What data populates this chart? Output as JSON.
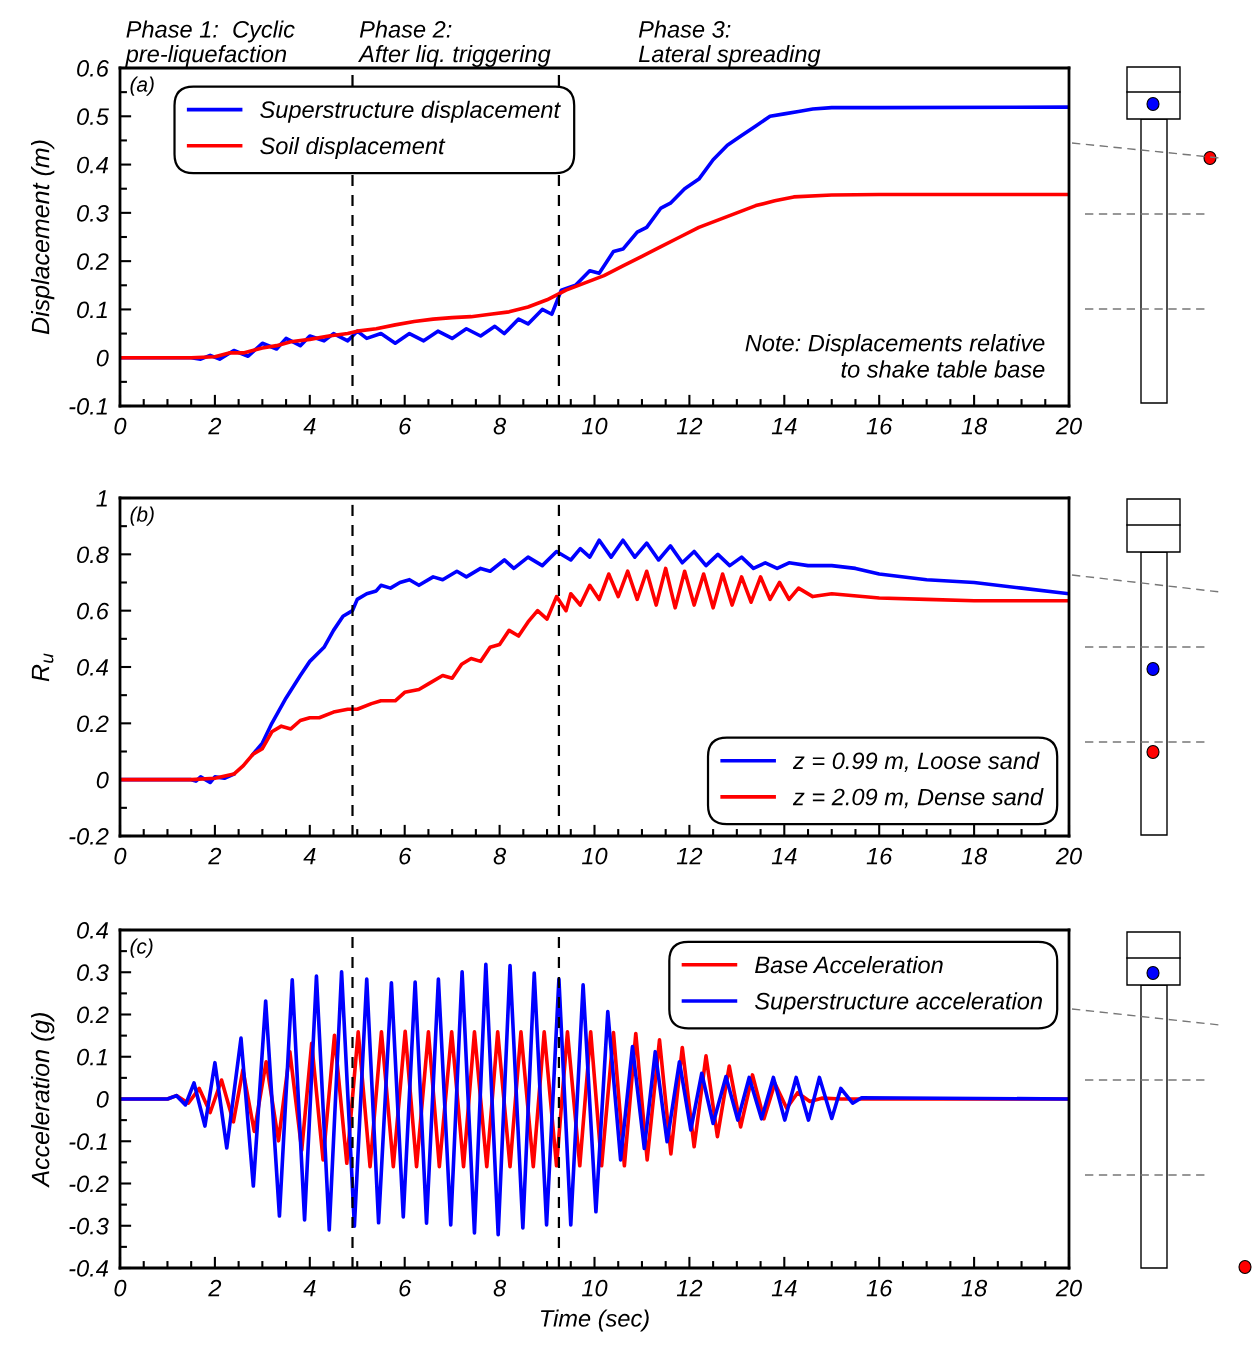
{
  "chart_data": [
    {
      "type": "line",
      "ylabel": "Displacement (m)",
      "xlim": [
        0,
        20
      ],
      "xticks": [
        0,
        2,
        4,
        6,
        8,
        10,
        12,
        14,
        16,
        18,
        20
      ],
      "ylim": [
        -0.1,
        0.6
      ],
      "yticks": [
        -0.1,
        0,
        0.1,
        0.2,
        0.3,
        0.4,
        0.5,
        0.6
      ],
      "legend": "top left",
      "grid": false,
      "annotations": [
        "(a)",
        "Note: Displacements relative\nto shake table base",
        "Phase 1:  Cyclic\npre-liquefaction",
        "Phase 2:\nAfter liq. triggering",
        "Phase 3:\nLateral spreading"
      ],
      "ref_lines": [
        {
          "axis": "x",
          "value": 4.9,
          "color": "#000000",
          "line_style": "dashed"
        },
        {
          "axis": "x",
          "value": 9.25,
          "color": "#000000",
          "line_style": "dashed"
        }
      ],
      "series": [
        {
          "name": "Superstructure displacement",
          "color": "#0000ff",
          "x": [
            0,
            1.5,
            1.7,
            1.9,
            2.1,
            2.4,
            2.7,
            3.0,
            3.3,
            3.5,
            3.8,
            4.0,
            4.3,
            4.5,
            4.8,
            5.0,
            5.2,
            5.5,
            5.8,
            6.1,
            6.4,
            6.7,
            7.0,
            7.3,
            7.6,
            7.9,
            8.1,
            8.4,
            8.6,
            8.9,
            9.1,
            9.3,
            9.6,
            9.9,
            10.1,
            10.4,
            10.6,
            10.9,
            11.1,
            11.4,
            11.6,
            11.9,
            12.2,
            12.5,
            12.8,
            13.1,
            13.4,
            13.7,
            14.0,
            14.3,
            14.6,
            15,
            16,
            20
          ],
          "values": [
            0,
            0,
            -0.003,
            0.005,
            -0.003,
            0.015,
            0.003,
            0.03,
            0.018,
            0.04,
            0.025,
            0.045,
            0.035,
            0.05,
            0.035,
            0.055,
            0.04,
            0.05,
            0.03,
            0.05,
            0.035,
            0.055,
            0.04,
            0.06,
            0.045,
            0.065,
            0.05,
            0.08,
            0.07,
            0.1,
            0.09,
            0.14,
            0.15,
            0.18,
            0.175,
            0.22,
            0.225,
            0.26,
            0.27,
            0.31,
            0.32,
            0.35,
            0.37,
            0.41,
            0.44,
            0.46,
            0.48,
            0.5,
            0.505,
            0.51,
            0.515,
            0.518,
            0.518,
            0.519
          ]
        },
        {
          "name": "Soil displacement",
          "color": "#ff0000",
          "x": [
            0,
            1.5,
            2.0,
            2.3,
            2.6,
            3.0,
            3.3,
            3.6,
            4.0,
            4.4,
            4.8,
            5.0,
            5.4,
            5.8,
            6.2,
            6.6,
            7.0,
            7.4,
            7.8,
            8.2,
            8.6,
            9.0,
            9.4,
            9.8,
            10.2,
            10.6,
            11.0,
            11.4,
            11.8,
            12.2,
            12.6,
            13.0,
            13.4,
            13.8,
            14.2,
            15,
            16,
            20
          ],
          "values": [
            0,
            0,
            0.002,
            0.01,
            0.01,
            0.02,
            0.025,
            0.033,
            0.038,
            0.045,
            0.05,
            0.055,
            0.06,
            0.068,
            0.075,
            0.08,
            0.083,
            0.085,
            0.09,
            0.095,
            0.105,
            0.12,
            0.14,
            0.155,
            0.17,
            0.19,
            0.21,
            0.23,
            0.25,
            0.27,
            0.285,
            0.3,
            0.315,
            0.325,
            0.333,
            0.337,
            0.338,
            0.338
          ]
        }
      ]
    },
    {
      "type": "line",
      "ylabel": "R$_{u}$",
      "xlim": [
        0,
        20
      ],
      "xticks": [
        0,
        2,
        4,
        6,
        8,
        10,
        12,
        14,
        16,
        18,
        20
      ],
      "ylim": [
        -0.2,
        1
      ],
      "yticks": [
        -0.2,
        0,
        0.2,
        0.4,
        0.6,
        0.8,
        1
      ],
      "legend": "bottom right",
      "grid": false,
      "annotations": [
        "(b)"
      ],
      "ref_lines": [
        {
          "axis": "x",
          "value": 4.9,
          "color": "#000000",
          "line_style": "dashed"
        },
        {
          "axis": "x",
          "value": 9.25,
          "color": "#000000",
          "line_style": "dashed"
        }
      ],
      "series": [
        {
          "name": "z = 0.99 m, Loose sand",
          "color": "#0000ff",
          "x": [
            0,
            1.5,
            1.6,
            1.7,
            1.9,
            2.0,
            2.2,
            2.4,
            2.6,
            2.8,
            3.0,
            3.2,
            3.5,
            3.8,
            4.0,
            4.3,
            4.5,
            4.7,
            4.9,
            5.0,
            5.2,
            5.4,
            5.5,
            5.7,
            5.9,
            6.1,
            6.3,
            6.6,
            6.8,
            7.1,
            7.3,
            7.6,
            7.8,
            8.1,
            8.3,
            8.6,
            8.9,
            9.2,
            9.5,
            9.7,
            9.9,
            10.1,
            10.35,
            10.6,
            10.85,
            11.1,
            11.35,
            11.6,
            11.85,
            12.1,
            12.35,
            12.6,
            12.85,
            13.1,
            13.35,
            13.6,
            13.85,
            14.1,
            14.5,
            15,
            15.5,
            16,
            17,
            18,
            19,
            20
          ],
          "values": [
            0,
            0,
            -0.005,
            0.01,
            -0.01,
            0.01,
            0.005,
            0.02,
            null,
            0.09,
            0.13,
            0.2,
            0.29,
            0.37,
            0.42,
            0.47,
            0.53,
            0.58,
            0.6,
            0.64,
            0.66,
            0.67,
            0.69,
            0.68,
            0.7,
            0.71,
            0.69,
            0.72,
            0.71,
            0.74,
            0.72,
            0.75,
            0.74,
            0.78,
            0.75,
            0.79,
            0.76,
            0.81,
            0.78,
            0.82,
            0.79,
            0.85,
            0.79,
            0.85,
            0.79,
            0.84,
            0.78,
            0.83,
            0.77,
            0.81,
            0.76,
            0.8,
            0.76,
            0.79,
            0.75,
            0.77,
            0.75,
            0.77,
            0.76,
            0.76,
            0.75,
            0.73,
            0.71,
            0.7,
            0.68,
            0.66
          ]
        },
        {
          "name": "z = 2.09 m, Dense sand",
          "color": "#ff0000",
          "x": [
            0,
            1.5,
            2.0,
            2.4,
            2.6,
            2.8,
            3.0,
            3.2,
            3.4,
            3.6,
            3.8,
            4.0,
            4.2,
            4.5,
            4.8,
            5.0,
            5.3,
            5.5,
            5.8,
            6.0,
            6.3,
            6.5,
            6.8,
            7.0,
            7.2,
            7.4,
            7.6,
            7.8,
            8.0,
            8.2,
            8.4,
            8.6,
            8.8,
            9.0,
            9.2,
            9.4,
            9.5,
            9.7,
            9.9,
            10.1,
            10.3,
            10.5,
            10.7,
            10.9,
            11.1,
            11.3,
            11.5,
            11.7,
            11.9,
            12.1,
            12.3,
            12.5,
            12.7,
            12.9,
            13.1,
            13.3,
            13.5,
            13.7,
            13.9,
            14.1,
            14.3,
            14.6,
            15,
            16,
            17,
            18,
            20
          ],
          "values": [
            0,
            0,
            0.005,
            0.02,
            0.05,
            0.09,
            0.11,
            0.17,
            0.19,
            0.18,
            0.21,
            0.22,
            0.22,
            0.24,
            0.25,
            0.25,
            0.27,
            0.28,
            0.28,
            0.31,
            0.32,
            0.34,
            0.37,
            0.36,
            0.41,
            0.43,
            0.42,
            0.47,
            0.48,
            0.53,
            0.51,
            0.56,
            0.6,
            0.57,
            0.65,
            0.6,
            0.66,
            0.62,
            0.69,
            0.64,
            0.73,
            0.65,
            0.74,
            0.64,
            0.74,
            0.62,
            0.75,
            0.61,
            0.74,
            0.62,
            0.73,
            0.61,
            0.73,
            0.62,
            0.72,
            0.63,
            0.72,
            0.64,
            0.7,
            0.64,
            0.68,
            0.65,
            0.66,
            0.645,
            0.64,
            0.635,
            0.635
          ]
        }
      ]
    },
    {
      "type": "line",
      "xlabel": "Time (sec)",
      "ylabel": "Acceleration (g)",
      "xlim": [
        0,
        20
      ],
      "xticks": [
        0,
        2,
        4,
        6,
        8,
        10,
        12,
        14,
        16,
        18,
        20
      ],
      "ylim": [
        -0.4,
        0.4
      ],
      "yticks": [
        -0.4,
        -0.3,
        -0.2,
        -0.1,
        0,
        0.1,
        0.2,
        0.3,
        0.4
      ],
      "legend": "top right",
      "grid": false,
      "annotations": [
        "(c)"
      ],
      "ref_lines": [
        {
          "axis": "x",
          "value": 4.9,
          "color": "#000000",
          "line_style": "dashed"
        },
        {
          "axis": "x",
          "value": 9.25,
          "color": "#000000",
          "line_style": "dashed"
        }
      ],
      "series": [
        {
          "name": "Base Acceleration",
          "color": "#ff0000",
          "x": [
            0,
            1.0,
            1.19,
            1.44,
            1.67,
            1.9,
            2.14,
            2.39,
            2.59,
            2.83,
            3.08,
            3.34,
            3.58,
            3.83,
            4.04,
            4.28,
            4.52,
            4.78,
            5.02,
            5.27,
            5.51,
            5.76,
            6.01,
            6.25,
            6.5,
            6.73,
            6.99,
            7.24,
            7.47,
            7.73,
            7.96,
            8.22,
            8.45,
            8.71,
            8.94,
            9.2,
            9.43,
            9.69,
            9.92,
            10.15,
            10.4,
            10.63,
            10.87,
            11.11,
            11.37,
            11.61,
            11.85,
            12.1,
            12.35,
            12.59,
            12.84,
            13.08,
            13.33,
            13.57,
            13.8,
            14.05,
            14.28,
            14.54,
            14.79,
            15.2,
            20
          ],
          "values": [
            0,
            0,
            0.008,
            -0.01,
            0.025,
            -0.032,
            0.045,
            -0.054,
            0.069,
            -0.077,
            0.088,
            -0.099,
            0.112,
            -0.121,
            0.132,
            -0.144,
            0.151,
            -0.152,
            0.159,
            -0.16,
            0.159,
            -0.16,
            0.16,
            -0.16,
            0.159,
            -0.16,
            0.159,
            -0.16,
            0.159,
            -0.16,
            0.159,
            -0.16,
            0.159,
            -0.16,
            0.159,
            -0.158,
            0.159,
            -0.158,
            0.159,
            -0.158,
            0.157,
            -0.158,
            0.155,
            -0.144,
            0.14,
            -0.13,
            0.122,
            -0.113,
            0.102,
            -0.089,
            0.078,
            -0.066,
            0.057,
            -0.047,
            0.037,
            -0.022,
            0.015,
            -0.006,
            0.002,
            0,
            0
          ]
        },
        {
          "name": "Superstructure acceleration",
          "color": "#0000ff",
          "x": [
            0,
            1.0,
            1.19,
            1.38,
            1.56,
            1.79,
            2.0,
            2.25,
            2.55,
            2.81,
            3.07,
            3.36,
            3.63,
            3.89,
            4.14,
            4.41,
            4.67,
            4.94,
            5.2,
            5.45,
            5.72,
            5.97,
            6.22,
            6.46,
            6.71,
            6.97,
            7.21,
            7.47,
            7.71,
            7.97,
            8.22,
            8.49,
            8.73,
            8.99,
            9.25,
            9.5,
            9.76,
            10.03,
            10.28,
            10.55,
            10.8,
            11.05,
            11.28,
            11.53,
            11.79,
            12.03,
            12.26,
            12.5,
            12.77,
            13.02,
            13.26,
            13.52,
            13.77,
            14.01,
            14.25,
            14.51,
            14.74,
            15.0,
            15.19,
            15.44,
            15.63,
            20
          ],
          "values": [
            0,
            0,
            0.008,
            -0.014,
            0.038,
            -0.064,
            0.086,
            -0.116,
            0.144,
            -0.206,
            0.232,
            -0.277,
            0.282,
            -0.286,
            0.291,
            -0.31,
            0.301,
            -0.301,
            0.284,
            -0.293,
            0.275,
            -0.279,
            0.277,
            -0.294,
            0.284,
            -0.298,
            0.301,
            -0.317,
            0.319,
            -0.321,
            0.316,
            -0.305,
            0.298,
            -0.298,
            0.284,
            -0.298,
            0.27,
            -0.267,
            0.207,
            -0.144,
            0.124,
            -0.117,
            0.112,
            -0.101,
            0.088,
            -0.073,
            0.061,
            -0.058,
            0.053,
            -0.05,
            0.051,
            -0.047,
            0.051,
            -0.05,
            0.051,
            -0.05,
            0.051,
            -0.046,
            0.025,
            -0.01,
            0.003,
            0
          ]
        }
      ]
    }
  ]
}
